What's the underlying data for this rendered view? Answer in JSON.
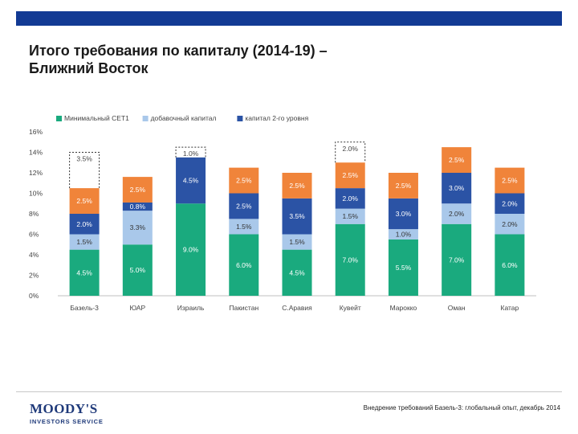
{
  "header": {
    "title_line1": "Итого требования по капиталу (2014-19) –",
    "title_line2": "Ближний Восток"
  },
  "footer": {
    "logo_name": "MOODY'S",
    "logo_sub": "INVESTORS SERVICE",
    "source_text": "Внедрение требований Базель-3: глобальный опыт, декабрь 2014"
  },
  "colors": {
    "cet1": "#1aaa7e",
    "additional": "#a9c8ea",
    "tier2": "#2b53a5",
    "buffer": "#f0843a",
    "top_bar": "#123a94"
  },
  "chart_data": {
    "type": "bar",
    "stacked": true,
    "categories": [
      "Базель-3",
      "ЮАР",
      "Израиль",
      "Пакистан",
      "С.Аравия",
      "Кувейт",
      "Марокко",
      "Оман",
      "Катар"
    ],
    "series": [
      {
        "name": "Минимальный CET1",
        "values": [
          4.5,
          5.0,
          9.0,
          6.0,
          4.5,
          7.0,
          5.5,
          7.0,
          6.0
        ],
        "labels": [
          "4.5%",
          "5.0%",
          "9.0%",
          "6.0%",
          "4.5%",
          "7.0%",
          "5.5%",
          "7.0%",
          "6.0%"
        ]
      },
      {
        "name": "добавочный капитал",
        "values": [
          1.5,
          3.3,
          0,
          1.5,
          1.5,
          1.5,
          1.0,
          2.0,
          2.0
        ],
        "labels": [
          "1.5%",
          "3.3%",
          "",
          "1.5%",
          "1.5%",
          "1.5%",
          "1.0%",
          "2.0%",
          "2.0%"
        ]
      },
      {
        "name": "капитал 2-го уровня",
        "values": [
          2.0,
          0.8,
          4.5,
          2.5,
          3.5,
          2.0,
          3.0,
          3.0,
          2.0
        ],
        "labels": [
          "2.0%",
          "0.8%",
          "4.5%",
          "2.5%",
          "3.5%",
          "2.0%",
          "3.0%",
          "3.0%",
          "2.0%"
        ]
      },
      {
        "values": [
          2.5,
          2.5,
          0,
          2.5,
          2.5,
          2.5,
          2.5,
          2.5,
          2.5
        ],
        "labels": [
          "2.5%",
          "2.5%",
          "",
          "2.5%",
          "2.5%",
          "2.5%",
          "2.5%",
          "2.5%",
          "2.5%"
        ]
      }
    ],
    "extras": [
      {
        "category": "Базель-3",
        "value": 3.5,
        "label": "3.5%"
      },
      {
        "category": "Израиль",
        "value": 1.0,
        "label": "1.0%"
      },
      {
        "category": "Кувейт",
        "value": 2.0,
        "label": "2.0%"
      }
    ],
    "yticks": [
      "0%",
      "2%",
      "4%",
      "6%",
      "8%",
      "10%",
      "12%",
      "14%",
      "16%"
    ],
    "ylim": [
      0,
      16
    ],
    "legend_position": "top-left",
    "grid": false
  }
}
